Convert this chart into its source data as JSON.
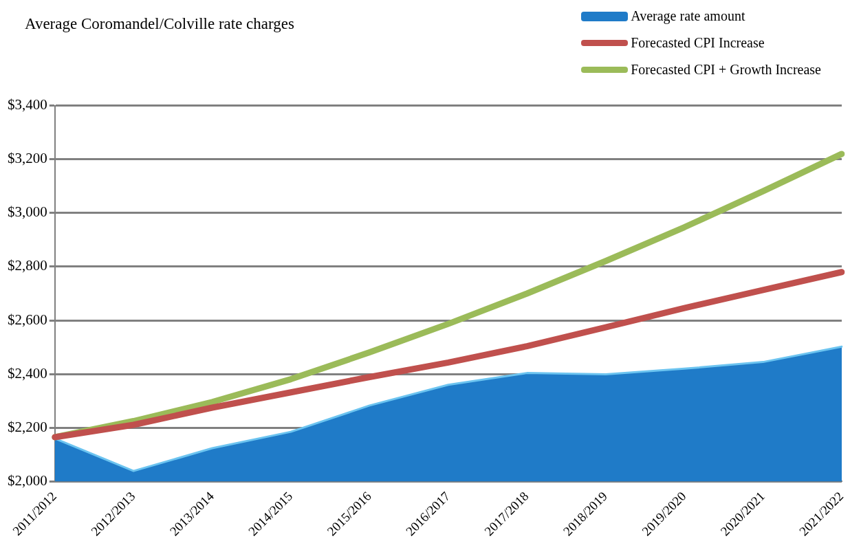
{
  "chart_data": {
    "type": "line",
    "title": "Average Coromandel/Colville rate charges",
    "categories": [
      "2011/2012",
      "2012/2013",
      "2013/2014",
      "2014/2015",
      "2015/2016",
      "2016/2017",
      "2017/2018",
      "2018/2019",
      "2019/2020",
      "2020/2021",
      "2021/2022"
    ],
    "series": [
      {
        "name": "Average rate amount",
        "type": "area",
        "color": "#1f7bc8",
        "values": [
          2160,
          2039,
          2124,
          2185,
          2283,
          2360,
          2404,
          2399,
          2420,
          2445,
          2502
        ]
      },
      {
        "name": "Forecasted CPI Increase",
        "color": "#c0504d",
        "values": [
          2165,
          2211,
          2275,
          2332,
          2389,
          2443,
          2504,
          2574,
          2646,
          2713,
          2780
        ]
      },
      {
        "name": "Forecasted CPI + Growth Increase",
        "color": "#9bbb59",
        "values": [
          2165,
          2225,
          2296,
          2381,
          2481,
          2587,
          2700,
          2821,
          2947,
          3081,
          3220
        ]
      }
    ],
    "ylim": [
      2000,
      3400
    ],
    "yticks": [
      {
        "value": 2000,
        "label": "$2,000"
      },
      {
        "value": 2200,
        "label": "$2,200"
      },
      {
        "value": 2400,
        "label": "$2,400"
      },
      {
        "value": 2600,
        "label": "$2,600"
      },
      {
        "value": 2800,
        "label": "$2,800"
      },
      {
        "value": 3000,
        "label": "$3,000"
      },
      {
        "value": 3200,
        "label": "$3,200"
      },
      {
        "value": 3400,
        "label": "$3,400"
      }
    ],
    "grid": "y",
    "legend": "top right",
    "marker": "none",
    "line_style": "solid"
  }
}
